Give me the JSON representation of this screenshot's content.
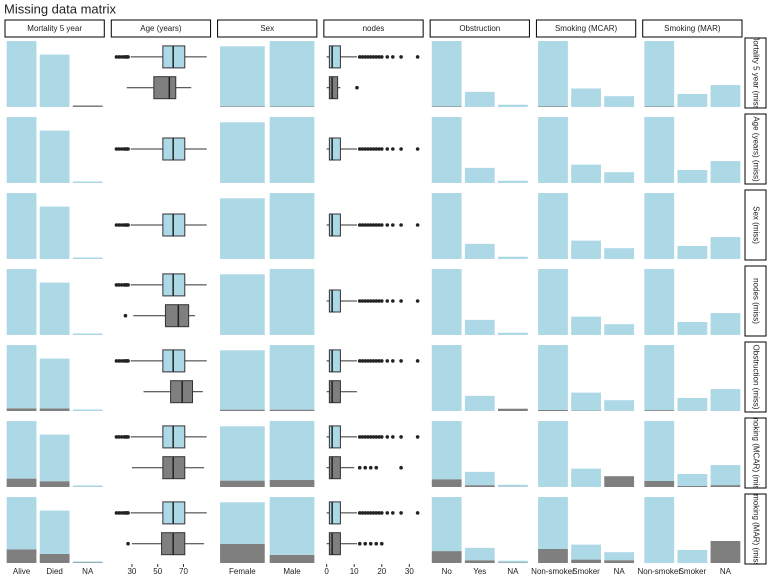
{
  "chart_data": {
    "type": "matrix",
    "title": "Missing data matrix",
    "colors": {
      "present": "#add8e6",
      "missing": "#7f7f7f"
    },
    "columns": [
      {
        "name": "Mortality 5 year",
        "type": "bar",
        "categories": [
          "Alive",
          "Died",
          "NA"
        ]
      },
      {
        "name": "Age (years)",
        "type": "boxplot",
        "xlim": [
          14,
          91
        ],
        "xticks": [
          30,
          50,
          70
        ]
      },
      {
        "name": "Sex",
        "type": "bar",
        "categories": [
          "Female",
          "Male"
        ]
      },
      {
        "name": "nodes",
        "type": "boxplot",
        "xlim": [
          -1,
          35
        ],
        "xticks": [
          0,
          10,
          20,
          30
        ]
      },
      {
        "name": "Obstruction",
        "type": "bar",
        "categories": [
          "No",
          "Yes",
          "NA"
        ]
      },
      {
        "name": "Smoking (MCAR)",
        "type": "bar",
        "categories": [
          "Non-smoker",
          "Smoker",
          "NA"
        ]
      },
      {
        "name": "Smoking (MAR)",
        "type": "bar",
        "categories": [
          "Non-smoker",
          "Smoker",
          "NA"
        ]
      }
    ],
    "rows": [
      "Mortality 5 year (miss)",
      "Age (years) (miss)",
      "Sex (miss)",
      "nodes (miss)",
      "Obstruction (miss)",
      "Smoking (MCAR) (miss)",
      "Smoking (MAR) (miss)"
    ],
    "panels": [
      [
        {
          "present": [
            511,
            406,
            0
          ],
          "missing": [
            0,
            0,
            12
          ]
        },
        {
          "present": {
            "stats": [
              29,
              54,
              62,
              71,
              88
            ],
            "outliers": [
              18,
              20,
              22,
              24,
              25,
              26,
              27
            ]
          },
          "missing": {
            "stats": [
              26,
              47,
              59,
              64,
              76
            ],
            "outliers": []
          }
        },
        {
          "present": [
            440,
            480
          ],
          "missing": [
            5,
            4
          ]
        },
        {
          "present": {
            "stats": [
              0,
              1,
              2,
              5,
              11
            ],
            "outliers": [
              12,
              13,
              14,
              15,
              16,
              17,
              18,
              19,
              20,
              22,
              24,
              27,
              33
            ]
          },
          "missing": {
            "stats": [
              0,
              1,
              2,
              4,
              5
            ],
            "outliers": [
              11
            ]
          }
        },
        {
          "present": [
            712,
            164,
            25
          ],
          "missing": [
            8,
            1,
            0
          ]
        },
        {
          "present": [
            652,
            184,
            108
          ],
          "missing": [
            8,
            1,
            0
          ]
        },
        {
          "present": [
            595,
            118,
            200
          ],
          "missing": [
            5,
            0,
            0
          ]
        }
      ],
      [
        {
          "present": [
            511,
            406,
            12
          ],
          "missing": [
            0,
            0,
            0
          ]
        },
        {
          "present": {
            "stats": [
              29,
              54,
              62,
              71,
              88
            ],
            "outliers": [
              18,
              20,
              22,
              24,
              25,
              26,
              27
            ]
          },
          "missing": null
        },
        {
          "present": [
            445,
            484
          ],
          "missing": [
            0,
            0
          ]
        },
        {
          "present": {
            "stats": [
              0,
              1,
              2,
              5,
              11
            ],
            "outliers": [
              12,
              13,
              14,
              15,
              16,
              17,
              18,
              19,
              20,
              22,
              24,
              27,
              33
            ]
          },
          "missing": null
        },
        {
          "present": [
            720,
            165,
            25
          ],
          "missing": [
            0,
            0,
            0
          ]
        },
        {
          "present": [
            660,
            184,
            108
          ],
          "missing": [
            0,
            0,
            0
          ]
        },
        {
          "present": [
            600,
            118,
            200
          ],
          "missing": [
            0,
            0,
            0
          ]
        }
      ],
      [
        {
          "present": [
            511,
            406,
            12
          ],
          "missing": [
            0,
            0,
            0
          ]
        },
        {
          "present": {
            "stats": [
              29,
              54,
              62,
              71,
              88
            ],
            "outliers": [
              18,
              20,
              22,
              24,
              25,
              26,
              27
            ]
          },
          "missing": null
        },
        {
          "present": [
            445,
            484
          ],
          "missing": [
            0,
            0
          ]
        },
        {
          "present": {
            "stats": [
              0,
              1,
              2,
              5,
              11
            ],
            "outliers": [
              12,
              13,
              14,
              15,
              16,
              17,
              18,
              19,
              20,
              22,
              24,
              27,
              33
            ]
          },
          "missing": null
        },
        {
          "present": [
            720,
            165,
            25
          ],
          "missing": [
            0,
            0,
            0
          ]
        },
        {
          "present": [
            660,
            184,
            108
          ],
          "missing": [
            0,
            0,
            0
          ]
        },
        {
          "present": [
            600,
            118,
            200
          ],
          "missing": [
            0,
            0,
            0
          ]
        }
      ],
      [
        {
          "present": [
            511,
            406,
            12
          ],
          "missing": [
            0,
            0,
            0
          ]
        },
        {
          "present": {
            "stats": [
              29,
              54,
              62,
              71,
              88
            ],
            "outliers": [
              18,
              20,
              22,
              24,
              25,
              26,
              27
            ]
          },
          "missing": {
            "stats": [
              31,
              56,
              66,
              74,
              79
            ],
            "outliers": [
              25
            ]
          }
        },
        {
          "present": [
            445,
            484
          ],
          "missing": [
            0,
            0
          ]
        },
        {
          "present": {
            "stats": [
              0,
              1,
              2,
              5,
              11
            ],
            "outliers": [
              12,
              13,
              14,
              15,
              16,
              17,
              18,
              19,
              20,
              22,
              24,
              27,
              33
            ]
          },
          "missing": null
        },
        {
          "present": [
            720,
            165,
            25
          ],
          "missing": [
            0,
            0,
            0
          ]
        },
        {
          "present": [
            660,
            184,
            108
          ],
          "missing": [
            0,
            0,
            0
          ]
        },
        {
          "present": [
            600,
            118,
            200
          ],
          "missing": [
            0,
            0,
            0
          ]
        }
      ],
      [
        {
          "present": [
            490,
            386,
            12
          ],
          "missing": [
            21,
            20,
            0
          ]
        },
        {
          "present": {
            "stats": [
              29,
              54,
              62,
              71,
              88
            ],
            "outliers": [
              18,
              20,
              22,
              24,
              25,
              26,
              27
            ]
          },
          "missing": {
            "stats": [
              39,
              60,
              69,
              77,
              85
            ],
            "outliers": []
          }
        },
        {
          "present": [
            435,
            474
          ],
          "missing": [
            10,
            10
          ]
        },
        {
          "present": {
            "stats": [
              0,
              1,
              2,
              5,
              11
            ],
            "outliers": [
              12,
              13,
              14,
              15,
              16,
              17,
              18,
              19,
              20,
              22,
              24,
              27,
              33
            ]
          },
          "missing": {
            "stats": [
              0,
              1,
              2,
              5,
              11
            ],
            "outliers": []
          }
        },
        {
          "present": [
            720,
            165,
            0
          ],
          "missing": [
            0,
            0,
            25
          ]
        },
        {
          "present": [
            650,
            180,
            106
          ],
          "missing": [
            10,
            4,
            2
          ]
        },
        {
          "present": [
            592,
            116,
            198
          ],
          "missing": [
            8,
            2,
            2
          ]
        }
      ],
      [
        {
          "present": [
            446,
            361,
            10
          ],
          "missing": [
            65,
            45,
            2
          ]
        },
        {
          "present": {
            "stats": [
              29,
              54,
              62,
              71,
              88
            ],
            "outliers": [
              18,
              20,
              22,
              24,
              25,
              26,
              27
            ]
          },
          "missing": {
            "stats": [
              30,
              54,
              62,
              71,
              86
            ],
            "outliers": []
          }
        },
        {
          "present": [
            398,
            432
          ],
          "missing": [
            47,
            52
          ]
        },
        {
          "present": {
            "stats": [
              0,
              1,
              2,
              5,
              11
            ],
            "outliers": [
              12,
              13,
              14,
              15,
              16,
              17,
              18,
              19,
              20,
              22,
              24,
              27,
              33
            ]
          },
          "missing": {
            "stats": [
              0,
              1,
              2,
              5,
              10
            ],
            "outliers": [
              12,
              14,
              16,
              18,
              27
            ]
          }
        },
        {
          "present": [
            635,
            145,
            22
          ],
          "missing": [
            85,
            20,
            3
          ]
        },
        {
          "present": [
            660,
            184,
            0
          ],
          "missing": [
            0,
            0,
            108
          ]
        },
        {
          "present": [
            545,
            108,
            183
          ],
          "missing": [
            55,
            10,
            17
          ]
        }
      ],
      [
        {
          "present": [
            406,
            336,
            8
          ],
          "missing": [
            105,
            70,
            4
          ]
        },
        {
          "present": {
            "stats": [
              29,
              54,
              62,
              71,
              88
            ],
            "outliers": [
              18,
              20,
              22,
              24,
              25,
              26,
              27
            ]
          },
          "missing": {
            "stats": [
              30,
              53,
              62,
              71,
              86
            ],
            "outliers": [
              27
            ]
          }
        },
        {
          "present": [
            305,
            424
          ],
          "missing": [
            140,
            60
          ]
        },
        {
          "present": {
            "stats": [
              0,
              1,
              2,
              5,
              11
            ],
            "outliers": [
              12,
              13,
              14,
              15,
              16,
              17,
              18,
              19,
              20,
              22,
              24,
              27,
              33
            ]
          },
          "missing": {
            "stats": [
              0,
              1,
              2,
              5,
              11
            ],
            "outliers": [
              12,
              14,
              16,
              18,
              20
            ]
          }
        },
        {
          "present": [
            590,
            135,
            20
          ],
          "missing": [
            130,
            30,
            5
          ]
        },
        {
          "present": [
            520,
            150,
            80
          ],
          "missing": [
            140,
            34,
            28
          ]
        },
        {
          "present": [
            600,
            118,
            0
          ],
          "missing": [
            0,
            0,
            200
          ]
        }
      ]
    ]
  }
}
